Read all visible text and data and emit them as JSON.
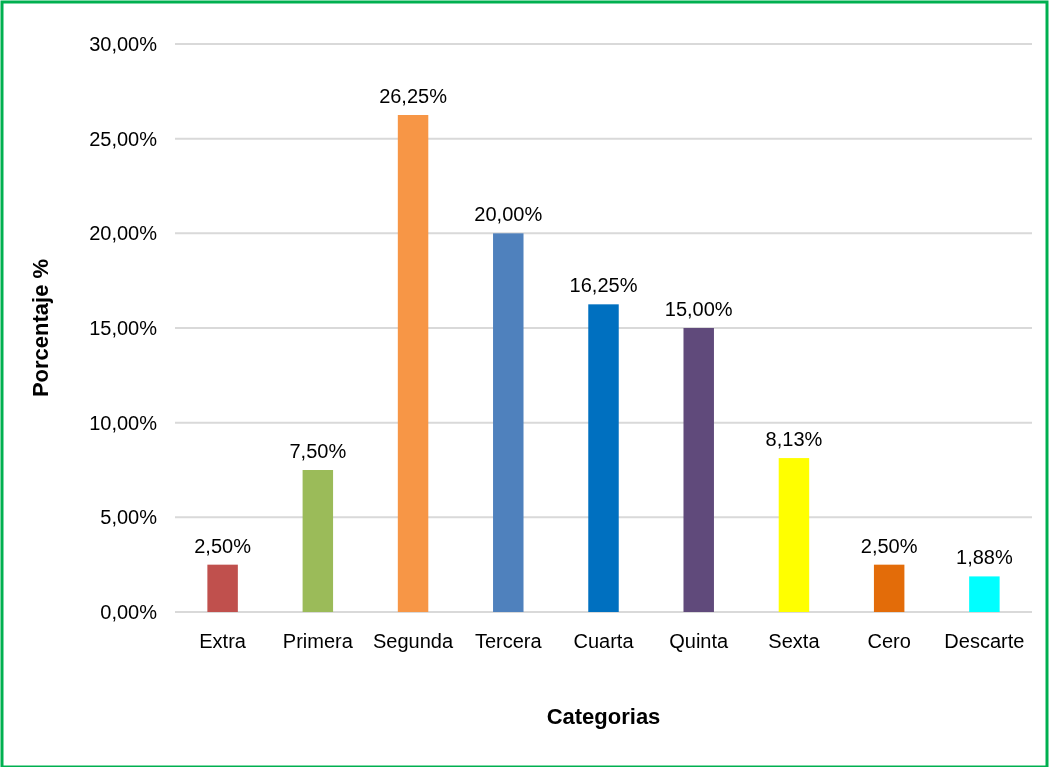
{
  "chart_data": {
    "type": "bar",
    "xlabel": "Categorias",
    "ylabel": "Porcentaje %",
    "categories": [
      "Extra",
      "Primera",
      "Segunda",
      "Tercera",
      "Cuarta",
      "Quinta",
      "Sexta",
      "Cero",
      "Descarte"
    ],
    "values": [
      2.5,
      7.5,
      26.25,
      20,
      16.25,
      15,
      8.13,
      2.5,
      1.88
    ],
    "colors": [
      "#c0504d",
      "#9bbb59",
      "#f79646",
      "#4f81bd",
      "#0070c0",
      "#604a7b",
      "#ffff00",
      "#e36c09",
      "#00ffff"
    ],
    "value_labels": [
      "2,50%",
      "7,50%",
      "26,25%",
      "20,00%",
      "16,25%",
      "15,00%",
      "8,13%",
      "2,50%",
      "1,88%"
    ],
    "ylim": [
      0,
      30
    ],
    "yticks": [
      {
        "value": 0,
        "label": "0,00%"
      },
      {
        "value": 5,
        "label": "5,00%"
      },
      {
        "value": 10,
        "label": "10,00%"
      },
      {
        "value": 15,
        "label": "15,00%"
      },
      {
        "value": 20,
        "label": "20,00%"
      },
      {
        "value": 25,
        "label": "25,00%"
      },
      {
        "value": 30,
        "label": "30,00%"
      }
    ],
    "grid": "y"
  }
}
